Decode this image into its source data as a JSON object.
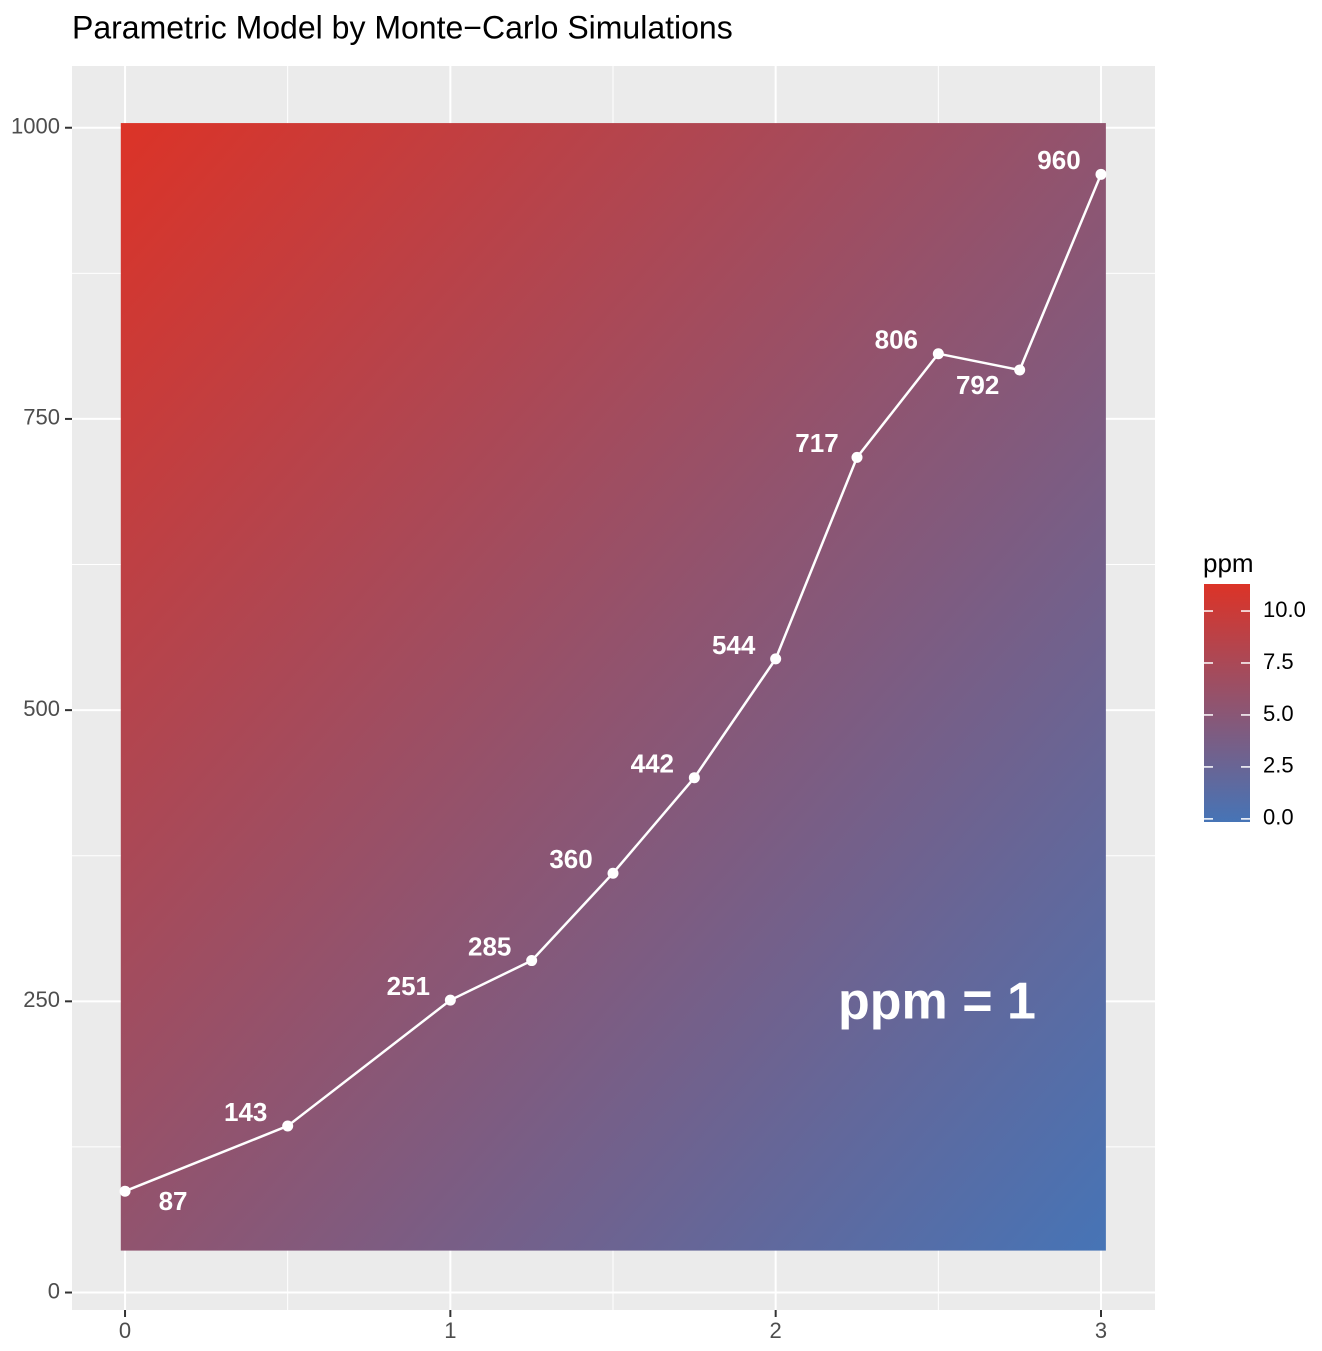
{
  "chart_data": {
    "type": "line",
    "title": "Parametric Model by Monte−Carlo Simulations",
    "x": [
      0,
      0.5,
      1,
      1.25,
      1.5,
      1.75,
      2,
      2.25,
      2.5,
      2.75,
      3
    ],
    "series": [
      {
        "color": "#ffffff",
        "values": [
          87,
          143,
          251,
          285,
          360,
          442,
          544,
          717,
          806,
          792,
          960
        ]
      }
    ],
    "xlim": [
      -0.163,
      3.166
    ],
    "ylim": [
      -15,
      1053
    ],
    "xticks": [
      0,
      1,
      2,
      3
    ],
    "yticks": [
      0,
      250,
      500,
      750,
      1000
    ],
    "xminorticks": [
      0.5,
      1.5,
      2.5
    ],
    "yminorticks": [
      125,
      375,
      625,
      875
    ],
    "grid": true,
    "raster_xlim": [
      -0.013,
      3.015
    ],
    "raster_ylim": [
      36,
      1004
    ],
    "annotation": "ppm = 1",
    "colorbar": {
      "title": "ppm",
      "low": "#4674b6",
      "high": "#dc3327",
      "limits": [
        -0.15,
        11.3
      ],
      "ticks": [
        {
          "value": 0,
          "label": "0.0"
        },
        {
          "value": 2.5,
          "label": "2.5"
        },
        {
          "value": 5,
          "label": "5.0"
        },
        {
          "value": 7.5,
          "label": "7.5"
        },
        {
          "value": 10,
          "label": "10.0"
        }
      ]
    }
  }
}
